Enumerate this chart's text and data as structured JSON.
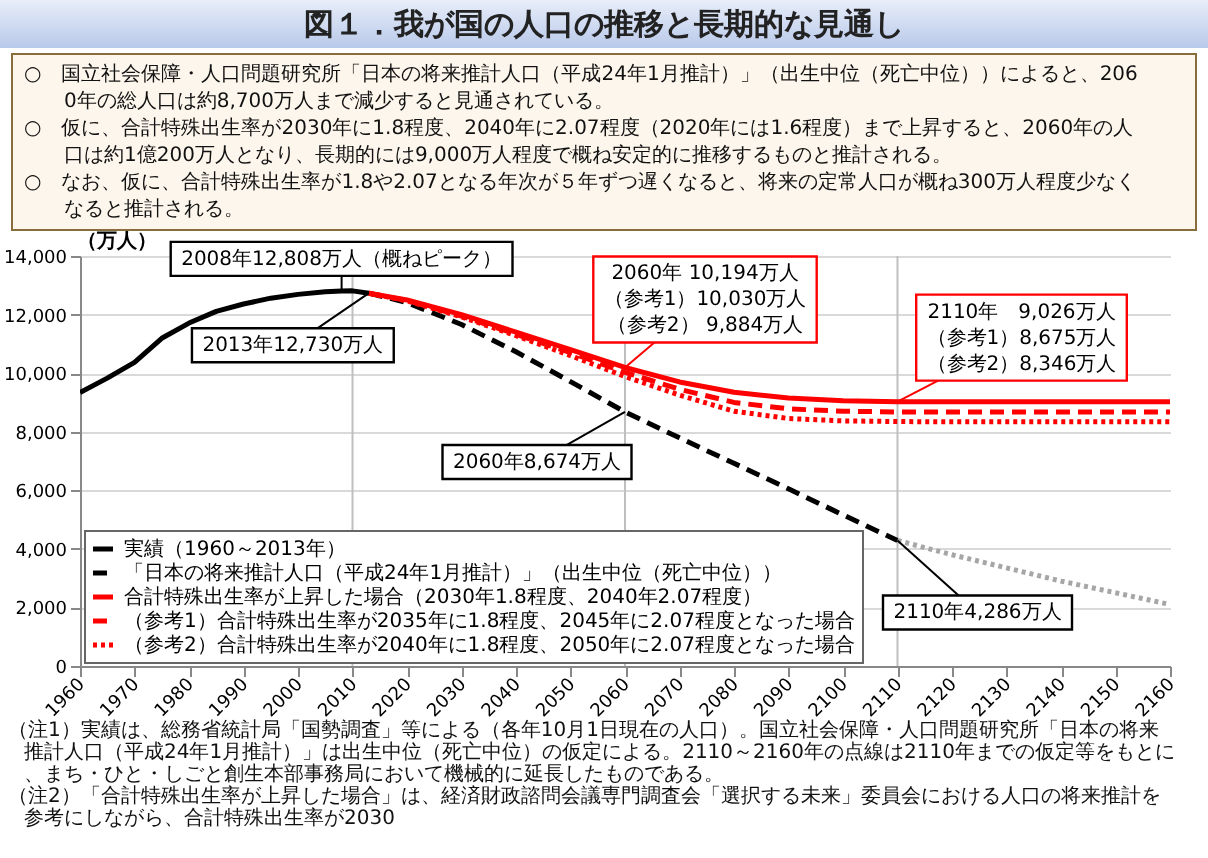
{
  "chart_data": {
    "type": "line",
    "title": "図１．我が国の人口の推移と長期的な見通し",
    "subtitle": "○　国立社会保障・人口問題研究所「日本の将来推計人口（平成24年1月推計）」（出生中位（死亡中位））によると、2060年の総人口は約8,700万人まで減少すると見通されている。\n○　仮に、合計特殊出生率が2030年に1.8程度、2040年に2.07程度（2020年には1.6程度）まで上昇すると、2060年の人口は約1億200万人となり、長期的には9,000万人程度で概ね安定的に推移するものと推計される。\n○　なお、仮に、合計特殊出生率が1.8や2.07となる年次が５年ずつ遅くなると、将来の定常人口が概ね300万人程度少なくなると推計される。",
    "ylabel": "（万人）",
    "xlim": [
      1960,
      2160
    ],
    "xticks": [
      1960,
      1970,
      1980,
      1990,
      2000,
      2010,
      2020,
      2030,
      2040,
      2050,
      2060,
      2070,
      2080,
      2090,
      2100,
      2110,
      2120,
      2130,
      2140,
      2150,
      2160
    ],
    "ylim": [
      0,
      14000
    ],
    "yticks": [
      {
        "value": 0,
        "label": "0"
      },
      {
        "value": 2000,
        "label": "2,000"
      },
      {
        "value": 4000,
        "label": "4,000"
      },
      {
        "value": 6000,
        "label": "6,000"
      },
      {
        "value": 8000,
        "label": "8,000"
      },
      {
        "value": 10000,
        "label": "10,000"
      },
      {
        "value": 12000,
        "label": "12,000"
      },
      {
        "value": 14000,
        "label": "14,000"
      }
    ],
    "grid": "y",
    "legend": "bottom left",
    "series": [
      {
        "name": "実績（1960～2013年）",
        "color": "#000000",
        "line_style": "solid",
        "x": [
          1960,
          1965,
          1970,
          1975,
          1980,
          1985,
          1990,
          1995,
          2000,
          2005,
          2008,
          2010,
          2013
        ],
        "values": [
          9340,
          9830,
          10370,
          11190,
          11710,
          12110,
          12360,
          12560,
          12690,
          12780,
          12808,
          12810,
          12730
        ]
      },
      {
        "name": "「日本の将来推計人口（平成24年1月推計）」（出生中位（死亡中位））",
        "color": "#000000",
        "line_style": "dashed",
        "x": [
          2013,
          2020,
          2030,
          2040,
          2050,
          2060,
          2070,
          2080,
          2090,
          2100,
          2110
        ],
        "values": [
          12730,
          12410,
          11660,
          10730,
          9710,
          8674,
          7790,
          6920,
          6050,
          5160,
          4286
        ]
      },
      {
        "name": "合計特殊出生率が上昇した場合（2030年1.8程度、2040年2.07程度）",
        "color": "#ff0000",
        "line_style": "solid",
        "x": [
          2013,
          2020,
          2030,
          2040,
          2050,
          2060,
          2070,
          2080,
          2090,
          2100,
          2110,
          2120,
          2130,
          2140,
          2150,
          2160
        ],
        "values": [
          12730,
          12500,
          12000,
          11400,
          10800,
          10194,
          9700,
          9350,
          9150,
          9060,
          9026,
          9020,
          9020,
          9020,
          9020,
          9020
        ]
      },
      {
        "name": "（参考1）合計特殊出生率が2035年に1.8程度、2045年に2.07程度となった場合",
        "color": "#ff0000",
        "line_style": "dashed",
        "x": [
          2013,
          2020,
          2030,
          2040,
          2050,
          2060,
          2070,
          2080,
          2090,
          2100,
          2110,
          2120,
          2130,
          2140,
          2150,
          2160
        ],
        "values": [
          12730,
          12480,
          11950,
          11330,
          10700,
          10030,
          9450,
          9000,
          8780,
          8700,
          8675,
          8670,
          8670,
          8670,
          8670,
          8670
        ]
      },
      {
        "name": "（参考2）合計特殊出生率が2040年に1.8程度、2050年に2.07程度となった場合",
        "color": "#ff0000",
        "line_style": "dotted",
        "x": [
          2013,
          2020,
          2030,
          2040,
          2050,
          2060,
          2070,
          2080,
          2090,
          2100,
          2110,
          2120,
          2130,
          2140,
          2150,
          2160
        ],
        "values": [
          12730,
          12470,
          11920,
          11280,
          10600,
          9884,
          9250,
          8700,
          8450,
          8370,
          8346,
          8340,
          8340,
          8340,
          8340,
          8340
        ]
      },
      {
        "color": "#a6a6a6",
        "line_style": "dotted",
        "x": [
          2110,
          2120,
          2130,
          2140,
          2150,
          2160
        ],
        "values": [
          4286,
          3800,
          3350,
          2900,
          2500,
          2100
        ]
      }
    ],
    "ref_lines": [
      {
        "axis": "x",
        "value": 2010,
        "color": "#bfbfbf"
      },
      {
        "axis": "x",
        "value": 2060,
        "color": "#bfbfbf"
      },
      {
        "axis": "x",
        "value": 2110,
        "color": "#bfbfbf"
      }
    ],
    "annotations": [
      {
        "text": "2008年12,808万人（概ねピーク）",
        "x": 2008,
        "y": 12808
      },
      {
        "text": "2013年12,730万人",
        "x": 2013,
        "y": 12730
      },
      {
        "text": "2060年8,674万人",
        "x": 2060,
        "y": 8674
      },
      {
        "text": "2060年 10,194万人（参考1）10,030万人（参考2） 9,884万人",
        "x": 2060,
        "y": 10194
      },
      {
        "text": "2110年　9,026万人（参考1）8,675万人（参考2）8,346万人",
        "x": 2110,
        "y": 9026
      },
      {
        "text": "2110年4,286万人",
        "x": 2110,
        "y": 4286
      },
      "（注1）実績は、総務省統計局「国勢調査」等による（各年10月1日現在の人口）。国立社会保障・人口問題研究所「日本の将来推計人口（平成24年1月推計）」は出生中位（死亡中位）の仮定による。2110～2160年の点線は2110年までの仮定等をもとに、まち・ひと・しごと創生本部事務局において機械的に延長したものである。",
      "（注2）「合計特殊出生率が上昇した場合」は、経済財政諮問会議専門調査会「選択する未来」委員会における人口の将来推計を参考にしながら、合計特殊出生率が2030"
    ]
  }
}
